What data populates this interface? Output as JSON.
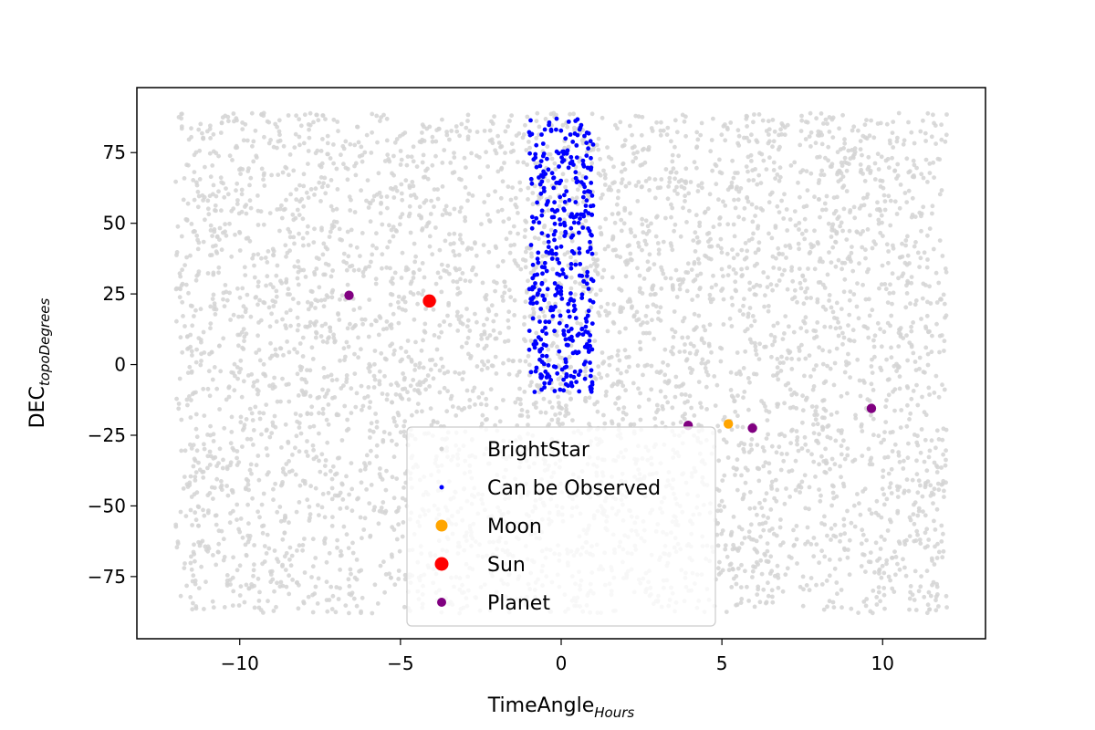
{
  "chart_data": {
    "type": "scatter",
    "title": "",
    "xlabel": {
      "main": "TimeAngle",
      "sub": "Hours"
    },
    "ylabel": {
      "main": "DEC",
      "sub": "topoDegrees"
    },
    "xlim": [
      -13.2,
      13.2
    ],
    "ylim": [
      -97,
      98
    ],
    "xticks": [
      -10,
      -5,
      0,
      5,
      10
    ],
    "yticks": [
      -75,
      -50,
      -25,
      0,
      25,
      50,
      75
    ],
    "xtick_labels": [
      "−10",
      "−5",
      "0",
      "5",
      "10"
    ],
    "ytick_labels": [
      "−75",
      "−50",
      "−25",
      "0",
      "25",
      "50",
      "75"
    ],
    "grid": false,
    "legend": {
      "placement": "bottom-center"
    },
    "series": [
      {
        "name": "BrightStar",
        "color": "#d3d3d3",
        "marker_size": "small",
        "distribution": {
          "approx_count": 5000,
          "x_range": [
            -12,
            12
          ],
          "y_range": [
            -88,
            89
          ],
          "seed": 7
        }
      },
      {
        "name": "Can be Observed",
        "color": "#0000ff",
        "marker_size": "small",
        "distribution": {
          "approx_count": 400,
          "x_range": [
            -1.0,
            1.0
          ],
          "y_range": [
            -10,
            87
          ],
          "seed": 13
        }
      },
      {
        "name": "Moon",
        "color": "#ffa500",
        "marker_size": "medium",
        "points": [
          {
            "x": 5.2,
            "y": -21
          }
        ]
      },
      {
        "name": "Sun",
        "color": "#ff0000",
        "marker_size": "large",
        "points": [
          {
            "x": -4.1,
            "y": 22.5
          }
        ]
      },
      {
        "name": "Planet",
        "color": "#800080",
        "marker_size": "medium",
        "points": [
          {
            "x": -6.6,
            "y": 24.5
          },
          {
            "x": 3.95,
            "y": -21.5
          },
          {
            "x": 5.95,
            "y": -22.5
          },
          {
            "x": 9.65,
            "y": -15.5
          }
        ]
      }
    ]
  }
}
